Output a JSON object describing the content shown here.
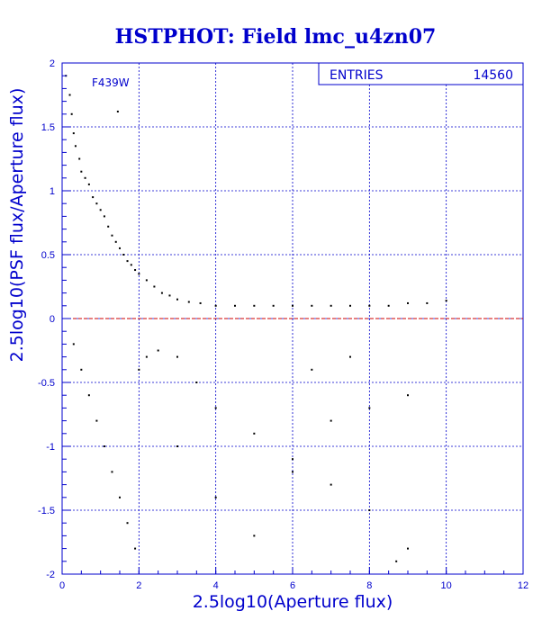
{
  "chart_data": {
    "type": "scatter",
    "title": "HSTPHOT: Field lmc_u4zn07",
    "xlabel": "2.5log10(Aperture flux)",
    "ylabel": "2.5log10(PSF flux/Aperture flux)",
    "xlim": [
      0,
      12
    ],
    "ylim": [
      -2,
      2
    ],
    "x_ticks": [
      "0",
      "2",
      "4",
      "6",
      "8",
      "10",
      "12"
    ],
    "y_ticks": [
      "-2",
      "-1.5",
      "-1",
      "-0.5",
      "0",
      "0.5",
      "1",
      "1.5",
      "2"
    ],
    "grid": true,
    "reference_line": {
      "y": 0,
      "color": "#cc0000"
    },
    "filter_label": "F439W",
    "stats": {
      "entries_label": "ENTRIES",
      "entries_value": "14560"
    },
    "series": [
      {
        "points": [
          [
            0.1,
            1.9
          ],
          [
            0.2,
            1.75
          ],
          [
            0.25,
            1.6
          ],
          [
            0.3,
            1.45
          ],
          [
            0.35,
            1.35
          ],
          [
            0.45,
            1.25
          ],
          [
            0.5,
            1.15
          ],
          [
            0.6,
            1.1
          ],
          [
            0.7,
            1.05
          ],
          [
            0.8,
            0.95
          ],
          [
            0.9,
            0.9
          ],
          [
            1.0,
            0.85
          ],
          [
            1.1,
            0.8
          ],
          [
            1.2,
            0.72
          ],
          [
            1.3,
            0.65
          ],
          [
            1.4,
            0.6
          ],
          [
            1.5,
            0.55
          ],
          [
            1.45,
            1.62
          ],
          [
            1.6,
            0.5
          ],
          [
            1.7,
            0.45
          ],
          [
            1.8,
            0.42
          ],
          [
            1.9,
            0.38
          ],
          [
            2.0,
            0.35
          ],
          [
            2.2,
            0.3
          ],
          [
            2.4,
            0.25
          ],
          [
            2.6,
            0.2
          ],
          [
            2.8,
            0.18
          ],
          [
            3.0,
            0.15
          ],
          [
            3.3,
            0.13
          ],
          [
            3.6,
            0.12
          ],
          [
            4.0,
            0.1
          ],
          [
            4.5,
            0.1
          ],
          [
            5.0,
            0.1
          ],
          [
            5.5,
            0.1
          ],
          [
            6.0,
            0.1
          ],
          [
            6.5,
            0.1
          ],
          [
            7.0,
            0.1
          ],
          [
            7.5,
            0.1
          ],
          [
            8.0,
            0.1
          ],
          [
            8.5,
            0.1
          ],
          [
            9.0,
            0.12
          ],
          [
            9.5,
            0.12
          ],
          [
            10.0,
            0.14
          ],
          [
            0.3,
            -0.2
          ],
          [
            0.5,
            -0.4
          ],
          [
            0.7,
            -0.6
          ],
          [
            0.9,
            -0.8
          ],
          [
            1.1,
            -1.0
          ],
          [
            1.3,
            -1.2
          ],
          [
            1.5,
            -1.4
          ],
          [
            1.7,
            -1.6
          ],
          [
            1.9,
            -1.8
          ],
          [
            2.0,
            -0.4
          ],
          [
            2.2,
            -0.3
          ],
          [
            2.5,
            -0.25
          ],
          [
            3.0,
            -0.3
          ],
          [
            3.5,
            -0.5
          ],
          [
            4.0,
            -0.7
          ],
          [
            5.0,
            -0.9
          ],
          [
            6.0,
            -1.1
          ],
          [
            7.0,
            -1.3
          ],
          [
            8.0,
            -1.5
          ],
          [
            8.7,
            -1.9
          ],
          [
            9.0,
            -1.8
          ],
          [
            3.0,
            -1.0
          ],
          [
            4.0,
            -1.4
          ],
          [
            5.0,
            -1.7
          ],
          [
            6.0,
            -1.2
          ],
          [
            7.0,
            -0.8
          ],
          [
            8.0,
            -0.7
          ],
          [
            9.0,
            -0.6
          ],
          [
            6.5,
            -0.4
          ],
          [
            7.5,
            -0.3
          ]
        ]
      }
    ]
  }
}
